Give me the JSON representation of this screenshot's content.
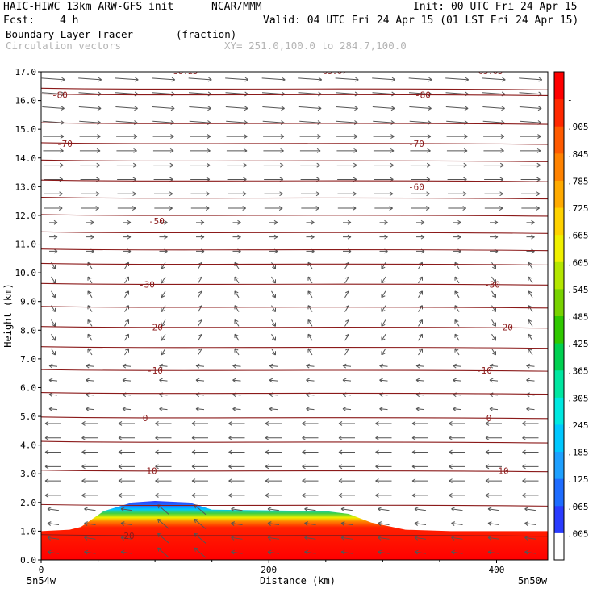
{
  "header": {
    "model": "HAIC-HIWC 13km ARW-GFS init",
    "org": "NCAR/MMM",
    "init": "Init: 00 UTC Fri 24 Apr 15",
    "fcst_label": "Fcst:",
    "fcst_value": "4 h",
    "valid": "Valid: 04 UTC Fri 24 Apr 15 (01 LST Fri 24 Apr 15)",
    "field1": "Boundary Layer Tracer",
    "field1_units": "(fraction)",
    "field2": "Circulation vectors",
    "xy": "XY= 251.0,100.0 to 284.7,100.0"
  },
  "chart_data": {
    "type": "heatmap",
    "xlabel": "Distance (km)",
    "ylabel": "Height (km)",
    "xlim": [
      0,
      445
    ],
    "ylim": [
      0,
      17
    ],
    "x_ticks": [
      0,
      200,
      400
    ],
    "y_ticks": [
      "0.0",
      "1.0",
      "2.0",
      "3.0",
      "4.0",
      "5.0",
      "6.0",
      "7.0",
      "8.0",
      "9.0",
      "10.0",
      "11.0",
      "12.0",
      "13.0",
      "14.0",
      "15.0",
      "16.0",
      "17.0"
    ],
    "x_end_labels": [
      "5n54w",
      "5n50w"
    ],
    "colorbar_labels": [
      ".005",
      ".065",
      ".125",
      ".185",
      ".245",
      ".305",
      ".365",
      ".425",
      ".485",
      ".545",
      ".605",
      ".665",
      ".725",
      ".785",
      ".845",
      ".905",
      "-"
    ],
    "colorbar_colors": [
      "#ffffff",
      "#2a3cff",
      "#1e6cff",
      "#1ea0ff",
      "#00c8ff",
      "#00e8e0",
      "#00e6a0",
      "#00d050",
      "#30c800",
      "#78d200",
      "#b4e600",
      "#f0f000",
      "#ffd200",
      "#ffaa00",
      "#ff8200",
      "#ff5a00",
      "#ff2800",
      "#ff0000"
    ],
    "temperature_contours": [
      {
        "label": "-80",
        "z": 16.2
      },
      {
        "label": "-70",
        "z": 14.5
      },
      {
        "label": "-60",
        "z": 13.0
      },
      {
        "label": "-50",
        "z": 11.8
      },
      {
        "label": "-30",
        "z": 9.6
      },
      {
        "label": "-20",
        "z": 8.1
      },
      {
        "label": "-10",
        "z": 6.6
      },
      {
        "label": "0",
        "z": 4.95
      },
      {
        "label": "10",
        "z": 3.1
      },
      {
        "label": "20",
        "z": 0.85
      }
    ],
    "isotherm_levels": [
      16.4,
      16.2,
      15.2,
      14.5,
      13.9,
      13.2,
      12.6,
      12.0,
      11.4,
      10.8,
      10.3,
      9.6,
      8.8,
      8.1,
      7.4,
      6.6,
      5.8,
      4.95,
      4.1,
      3.1,
      1.9,
      0.85
    ],
    "top_labels": [
      "58.23",
      "63.07",
      "63.03"
    ],
    "tracer_top_km": [
      [
        0,
        1.0
      ],
      [
        25,
        1.05
      ],
      [
        35,
        1.15
      ],
      [
        55,
        1.7
      ],
      [
        80,
        2.0
      ],
      [
        100,
        2.05
      ],
      [
        130,
        2.0
      ],
      [
        150,
        1.75
      ],
      [
        250,
        1.7
      ],
      [
        270,
        1.6
      ],
      [
        290,
        1.3
      ],
      [
        320,
        1.05
      ],
      [
        360,
        1.0
      ],
      [
        445,
        1.0
      ]
    ]
  },
  "colors": {
    "isotherm": "#8b1a1a",
    "vector": "#555555",
    "frame": "#000000"
  }
}
